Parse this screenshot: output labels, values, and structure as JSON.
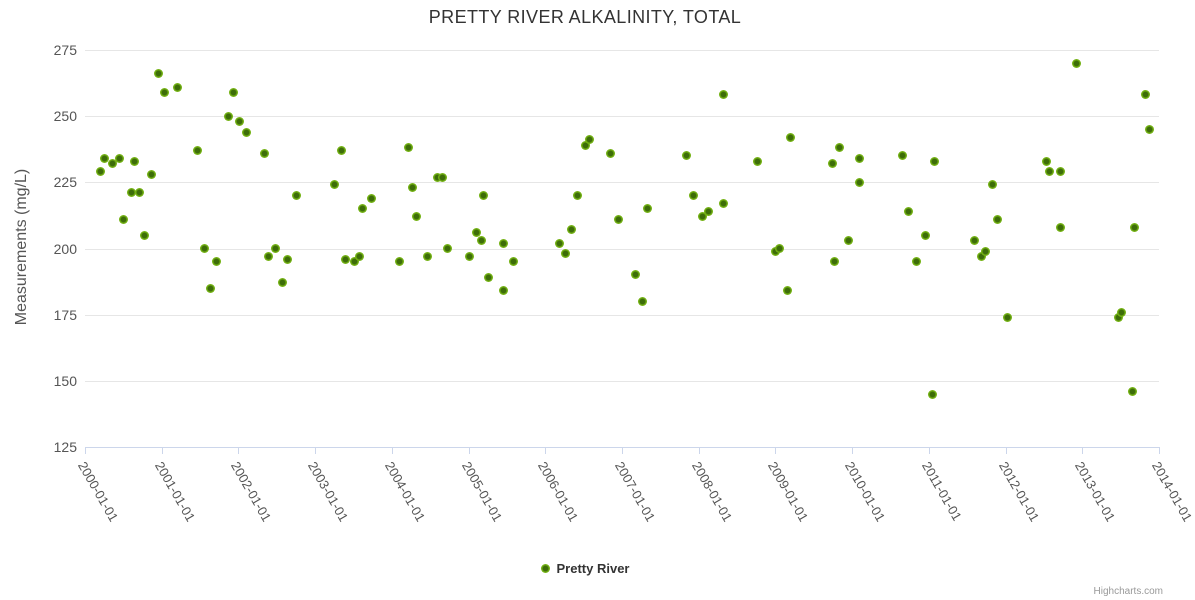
{
  "title": "PRETTY RIVER ALKALINITY, TOTAL",
  "y_axis": {
    "title": "Measurements (mg/L)"
  },
  "legend": {
    "label": "Pretty River"
  },
  "credits": {
    "label": "Highcharts.com"
  },
  "colors": {
    "point_fill": "#74b214",
    "point_center": "#3d6d09",
    "gridline": "#e6e6e6",
    "axis_line": "#ccd6eb",
    "title_text": "#333333",
    "label_text": "#555555",
    "credits_text": "#999999",
    "background": "#ffffff"
  },
  "chart_data": {
    "type": "scatter",
    "title": "PRETTY RIVER ALKALINITY, TOTAL",
    "xlabel": "",
    "ylabel": "Measurements (mg/L)",
    "xlim": [
      2000,
      2014
    ],
    "ylim": [
      125,
      275
    ],
    "y_ticks": [
      125,
      150,
      175,
      200,
      225,
      250,
      275
    ],
    "x_tick_labels": [
      "2000-01-01",
      "2001-01-01",
      "2002-01-01",
      "2003-01-01",
      "2004-01-01",
      "2005-01-01",
      "2006-01-01",
      "2007-01-01",
      "2008-01-01",
      "2009-01-01",
      "2010-01-01",
      "2011-01-01",
      "2012-01-01",
      "2013-01-01",
      "2014-01-01"
    ],
    "grid": "horizontal",
    "legend_position": "bottom-center",
    "series": [
      {
        "name": "Pretty River",
        "color": "#74b214",
        "points": [
          [
            2000.2,
            229
          ],
          [
            2000.26,
            234
          ],
          [
            2000.36,
            232
          ],
          [
            2000.45,
            234
          ],
          [
            2000.5,
            211
          ],
          [
            2000.6,
            221
          ],
          [
            2000.64,
            233
          ],
          [
            2000.71,
            221
          ],
          [
            2000.78,
            205
          ],
          [
            2000.87,
            228
          ],
          [
            2000.96,
            266
          ],
          [
            2001.03,
            259
          ],
          [
            2001.21,
            261
          ],
          [
            2001.46,
            237
          ],
          [
            2001.56,
            200
          ],
          [
            2001.64,
            185
          ],
          [
            2001.72,
            195
          ],
          [
            2001.87,
            250
          ],
          [
            2001.93,
            259
          ],
          [
            2002.02,
            248
          ],
          [
            2002.1,
            244
          ],
          [
            2002.34,
            236
          ],
          [
            2002.39,
            197
          ],
          [
            2002.48,
            200
          ],
          [
            2002.57,
            187
          ],
          [
            2002.64,
            196
          ],
          [
            2002.76,
            220
          ],
          [
            2003.25,
            224
          ],
          [
            2003.34,
            237
          ],
          [
            2003.4,
            196
          ],
          [
            2003.51,
            195
          ],
          [
            2003.58,
            197
          ],
          [
            2003.62,
            215
          ],
          [
            2003.73,
            219
          ],
          [
            2004.1,
            195
          ],
          [
            2004.22,
            238
          ],
          [
            2004.27,
            223
          ],
          [
            2004.32,
            212
          ],
          [
            2004.47,
            197
          ],
          [
            2004.6,
            227
          ],
          [
            2004.66,
            227
          ],
          [
            2004.72,
            200
          ],
          [
            2005.01,
            197
          ],
          [
            2005.1,
            206
          ],
          [
            2005.17,
            203
          ],
          [
            2005.19,
            220
          ],
          [
            2005.26,
            189
          ],
          [
            2005.45,
            202
          ],
          [
            2005.45,
            184
          ],
          [
            2005.59,
            195
          ],
          [
            2006.18,
            202
          ],
          [
            2006.27,
            198
          ],
          [
            2006.34,
            207
          ],
          [
            2006.42,
            220
          ],
          [
            2006.52,
            239
          ],
          [
            2006.58,
            241
          ],
          [
            2006.85,
            236
          ],
          [
            2006.95,
            211
          ],
          [
            2007.18,
            190
          ],
          [
            2007.27,
            180
          ],
          [
            2007.33,
            215
          ],
          [
            2007.84,
            235
          ],
          [
            2007.93,
            220
          ],
          [
            2008.05,
            212
          ],
          [
            2008.13,
            214
          ],
          [
            2008.32,
            217
          ],
          [
            2008.32,
            258
          ],
          [
            2008.76,
            233
          ],
          [
            2009.0,
            199
          ],
          [
            2009.05,
            200
          ],
          [
            2009.16,
            184
          ],
          [
            2009.2,
            242
          ],
          [
            2009.74,
            232
          ],
          [
            2009.77,
            195
          ],
          [
            2009.83,
            238
          ],
          [
            2009.95,
            203
          ],
          [
            2010.09,
            225
          ],
          [
            2010.1,
            234
          ],
          [
            2010.66,
            235
          ],
          [
            2010.74,
            214
          ],
          [
            2010.84,
            195
          ],
          [
            2010.95,
            205
          ],
          [
            2011.05,
            145
          ],
          [
            2011.07,
            233
          ],
          [
            2011.6,
            203
          ],
          [
            2011.69,
            197
          ],
          [
            2011.74,
            199
          ],
          [
            2011.83,
            224
          ],
          [
            2011.89,
            211
          ],
          [
            2012.02,
            174
          ],
          [
            2012.53,
            233
          ],
          [
            2012.57,
            229
          ],
          [
            2012.72,
            229
          ],
          [
            2012.71,
            208
          ],
          [
            2012.93,
            270
          ],
          [
            2013.47,
            174
          ],
          [
            2013.51,
            176
          ],
          [
            2013.66,
            146
          ],
          [
            2013.68,
            208
          ],
          [
            2013.83,
            258
          ],
          [
            2013.87,
            245
          ]
        ]
      }
    ]
  }
}
